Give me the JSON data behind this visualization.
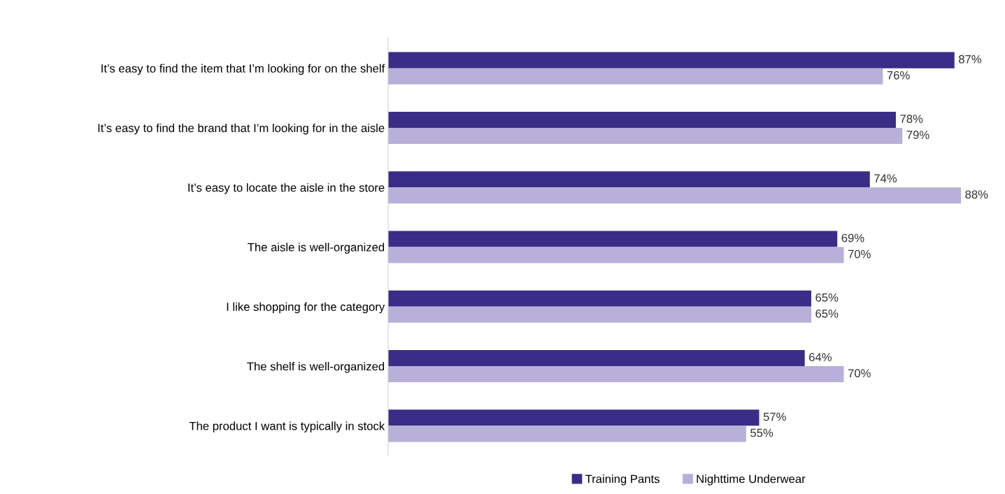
{
  "chart_data": {
    "type": "bar",
    "orientation": "horizontal",
    "legend": "bottom",
    "categories": [
      "It’s easy to find the item that I’m looking for on the shelf",
      "It’s easy to find the brand that I’m looking for in the aisle",
      "It’s easy to locate the aisle in the store",
      "The aisle is well-organized",
      "I like shopping for the category",
      "The shelf is well-organized",
      "The product I want is typically in stock"
    ],
    "tick_labels": "y",
    "series": [
      {
        "name": "Training Pants",
        "color": "#3a2d87",
        "values": [
          87,
          78,
          74,
          69,
          65,
          64,
          57
        ],
        "value_labels": [
          "87%",
          "78%",
          "74%",
          "69%",
          "65%",
          "64%",
          "57%"
        ]
      },
      {
        "name": "Nighttime Underwear",
        "color": "#b8b0d8",
        "values": [
          76,
          79,
          88,
          70,
          65,
          70,
          55
        ],
        "value_labels": [
          "76%",
          "79%",
          "88%",
          "70%",
          "65%",
          "70%",
          "55%"
        ]
      }
    ]
  }
}
